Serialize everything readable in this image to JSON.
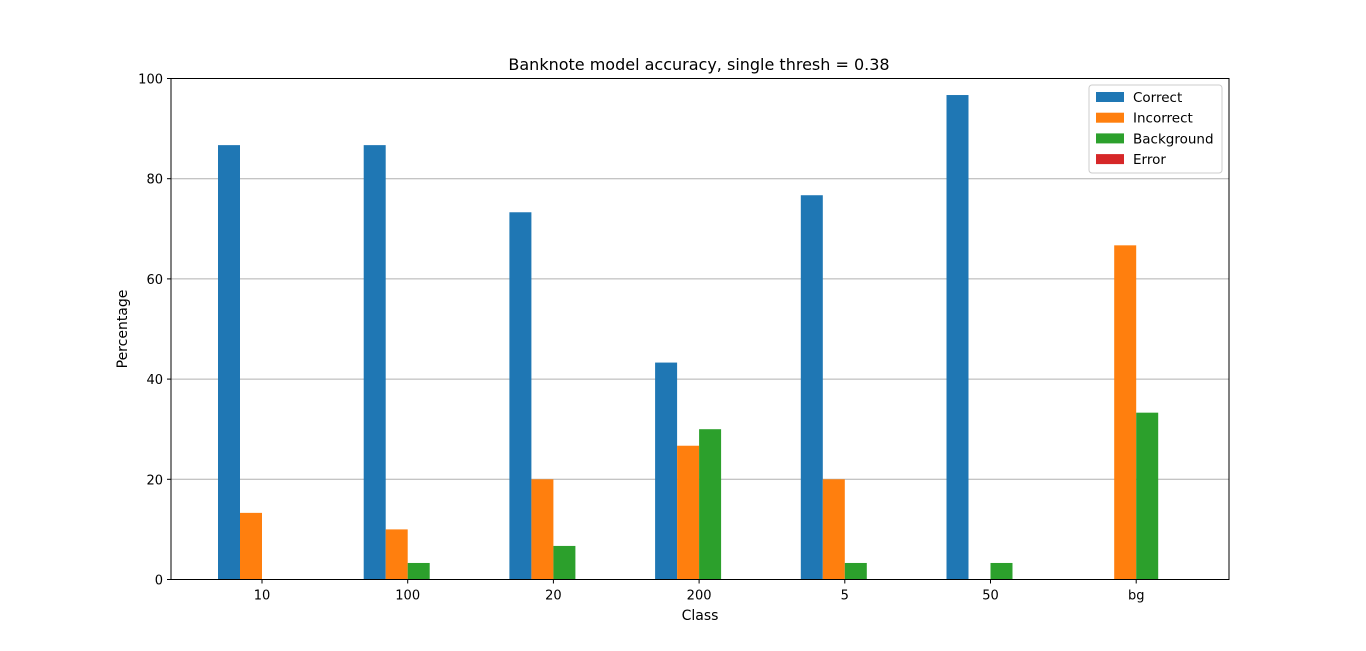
{
  "chart_data": {
    "type": "bar",
    "title": "Banknote model accuracy, single thresh = 0.38",
    "xlabel": "Class",
    "ylabel": "Percentage",
    "ylim": [
      0,
      100
    ],
    "yticks": [
      0,
      20,
      40,
      60,
      80,
      100
    ],
    "grid": "y-major",
    "legend_position": "top-right",
    "categories": [
      "10",
      "100",
      "20",
      "200",
      "5",
      "50",
      "bg"
    ],
    "series": [
      {
        "name": "Correct",
        "color": "#1f77b4",
        "values": [
          86.7,
          86.7,
          73.3,
          43.3,
          76.7,
          96.7,
          0
        ]
      },
      {
        "name": "Incorrect",
        "color": "#ff7f0e",
        "values": [
          13.3,
          10.0,
          20.0,
          26.7,
          20.0,
          0,
          66.7
        ]
      },
      {
        "name": "Background",
        "color": "#2ca02c",
        "values": [
          0,
          3.3,
          6.7,
          30.0,
          3.3,
          3.3,
          33.3
        ]
      },
      {
        "name": "Error",
        "color": "#d62728",
        "values": [
          0,
          0,
          0,
          0,
          0,
          0,
          0
        ]
      }
    ]
  }
}
